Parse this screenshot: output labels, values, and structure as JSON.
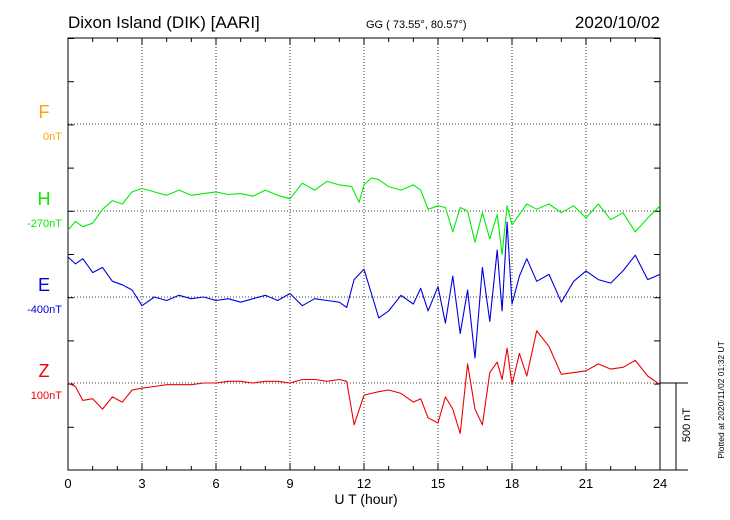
{
  "header": {
    "station": "Dixon Island (DIK)  [AARI]",
    "coords": "GG ( 73.55°,  80.57°)",
    "date": "2020/10/02"
  },
  "side_note": "Plotted at 2020/11/02 01:32 UT",
  "scale_label": "500 nT",
  "chart_data": {
    "type": "line",
    "xlabel": "U T (hour)",
    "xlim": [
      0,
      24
    ],
    "x_ticks": [
      0,
      3,
      6,
      9,
      12,
      15,
      18,
      21,
      24
    ],
    "scale_bar_nT": 500,
    "grid": true,
    "series": [
      {
        "name": "F",
        "baseline_label": "0nT",
        "color": "#ffa500",
        "values": []
      },
      {
        "name": "H",
        "baseline_label": "-270nT",
        "color": "#00ee00",
        "x": [
          0,
          0.3,
          0.6,
          1,
          1.4,
          1.8,
          2.2,
          2.6,
          3,
          3.5,
          4,
          4.5,
          5,
          5.5,
          6,
          6.5,
          7,
          7.5,
          8,
          8.5,
          9,
          9.5,
          10,
          10.5,
          11,
          11.5,
          11.8,
          12,
          12.3,
          12.6,
          13,
          13.5,
          14,
          14.3,
          14.6,
          15,
          15.3,
          15.6,
          15.9,
          16.2,
          16.5,
          16.8,
          17.1,
          17.4,
          17.6,
          17.8,
          18,
          18.3,
          18.6,
          19,
          19.5,
          20,
          20.5,
          21,
          21.5,
          22,
          22.5,
          23,
          23.5,
          24
        ],
        "values": [
          -110,
          -60,
          -90,
          -70,
          10,
          60,
          40,
          110,
          130,
          110,
          90,
          120,
          90,
          100,
          110,
          95,
          100,
          85,
          120,
          90,
          70,
          160,
          120,
          170,
          150,
          140,
          50,
          150,
          190,
          180,
          140,
          120,
          150,
          120,
          10,
          30,
          20,
          -120,
          20,
          0,
          -180,
          -10,
          -160,
          -20,
          -250,
          30,
          -80,
          -20,
          40,
          10,
          40,
          -10,
          30,
          -40,
          40,
          -50,
          -10,
          -120,
          -40,
          30
        ]
      },
      {
        "name": "E",
        "baseline_label": "-400nT",
        "color": "#0000dd",
        "x": [
          0,
          0.3,
          0.6,
          1,
          1.4,
          1.8,
          2.2,
          2.6,
          3,
          3.5,
          4,
          4.5,
          5,
          5.5,
          6,
          6.5,
          7,
          7.5,
          8,
          8.5,
          9,
          9.5,
          10,
          10.5,
          11,
          11.3,
          11.6,
          12,
          12.3,
          12.6,
          13,
          13.5,
          14,
          14.3,
          14.6,
          15,
          15.3,
          15.6,
          15.9,
          16.2,
          16.5,
          16.8,
          17.1,
          17.4,
          17.6,
          17.8,
          18,
          18.3,
          18.6,
          19,
          19.5,
          20,
          20.5,
          21,
          21.5,
          22,
          22.5,
          23,
          23.5,
          24
        ],
        "values": [
          230,
          190,
          220,
          140,
          170,
          90,
          70,
          40,
          -50,
          0,
          -20,
          10,
          -10,
          0,
          -20,
          -10,
          -30,
          -10,
          10,
          -20,
          20,
          -50,
          -10,
          -20,
          -30,
          -60,
          100,
          160,
          20,
          -120,
          -80,
          10,
          -40,
          50,
          -80,
          60,
          -150,
          120,
          -210,
          40,
          -350,
          170,
          -140,
          270,
          -80,
          430,
          -40,
          120,
          220,
          90,
          130,
          -30,
          90,
          150,
          100,
          80,
          150,
          240,
          100,
          130
        ]
      },
      {
        "name": "Z",
        "baseline_label": "100nT",
        "color": "#ee0000",
        "x": [
          0,
          0.3,
          0.6,
          1,
          1.4,
          1.8,
          2.2,
          2.6,
          3,
          3.5,
          4,
          4.5,
          5,
          5.5,
          6,
          6.5,
          7,
          7.5,
          8,
          8.5,
          9,
          9.5,
          10,
          10.5,
          11,
          11.3,
          11.6,
          12,
          12.3,
          12.6,
          13,
          13.5,
          14,
          14.3,
          14.6,
          15,
          15.3,
          15.6,
          15.9,
          16.2,
          16.5,
          16.8,
          17.1,
          17.4,
          17.6,
          17.8,
          18,
          18.3,
          18.6,
          19,
          19.5,
          20,
          20.5,
          21,
          21.5,
          22,
          22.5,
          23,
          23.5,
          24
        ],
        "values": [
          0,
          -20,
          -100,
          -90,
          -150,
          -80,
          -110,
          -40,
          -30,
          -20,
          -10,
          -10,
          -10,
          0,
          0,
          10,
          10,
          0,
          10,
          10,
          0,
          20,
          20,
          10,
          20,
          10,
          -240,
          -70,
          -60,
          -50,
          -40,
          -60,
          -110,
          -90,
          -200,
          -230,
          -80,
          -150,
          -290,
          110,
          -150,
          -240,
          60,
          120,
          20,
          200,
          -10,
          170,
          40,
          300,
          210,
          50,
          60,
          70,
          110,
          80,
          90,
          130,
          40,
          -10
        ]
      }
    ]
  }
}
